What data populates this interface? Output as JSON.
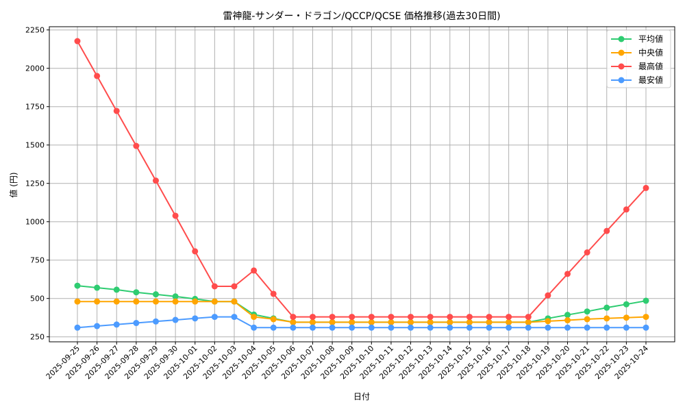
{
  "chart_data": {
    "type": "line",
    "title": "雷神龍-サンダー・ドラゴン/QCCP/QCSE 価格推移(過去30日間)",
    "xlabel": "日付",
    "ylabel": "値 (円)",
    "ylim": [
      225,
      2270
    ],
    "yticks": [
      250,
      500,
      750,
      1000,
      1250,
      1500,
      1750,
      2000,
      2250
    ],
    "grid": true,
    "legend_position": "upper right",
    "x": [
      "2025-09-25",
      "2025-09-26",
      "2025-09-27",
      "2025-09-28",
      "2025-09-29",
      "2025-09-30",
      "2025-10-01",
      "2025-10-02",
      "2025-10-03",
      "2025-10-04",
      "2025-10-05",
      "2025-10-06",
      "2025-10-07",
      "2025-10-08",
      "2025-10-09",
      "2025-10-10",
      "2025-10-11",
      "2025-10-12",
      "2025-10-13",
      "2025-10-14",
      "2025-10-15",
      "2025-10-16",
      "2025-10-17",
      "2025-10-18",
      "2025-10-19",
      "2025-10-20",
      "2025-10-21",
      "2025-10-22",
      "2025-10-23",
      "2025-10-24"
    ],
    "series": [
      {
        "name": "平均値",
        "color": "#2ecc71",
        "values": [
          583,
          570,
          557,
          540,
          527,
          513,
          497,
          480,
          480,
          395,
          370,
          345,
          345,
          345,
          345,
          345,
          345,
          345,
          345,
          345,
          345,
          345,
          345,
          345,
          370,
          393,
          415,
          440,
          462,
          485
        ]
      },
      {
        "name": "中央値",
        "color": "#ffa500",
        "values": [
          480,
          480,
          480,
          480,
          480,
          480,
          480,
          480,
          480,
          380,
          365,
          345,
          345,
          345,
          345,
          345,
          345,
          345,
          345,
          345,
          345,
          345,
          345,
          345,
          352,
          358,
          365,
          370,
          375,
          380
        ]
      },
      {
        "name": "最高値",
        "color": "#ff4c4c",
        "values": [
          2177,
          1950,
          1722,
          1494,
          1268,
          1039,
          807,
          579,
          579,
          682,
          530,
          380,
          380,
          380,
          380,
          380,
          380,
          380,
          380,
          380,
          380,
          380,
          380,
          380,
          520,
          660,
          800,
          940,
          1080,
          1220
        ]
      },
      {
        "name": "最安値",
        "color": "#4c9bff",
        "values": [
          310,
          320,
          330,
          340,
          350,
          360,
          370,
          380,
          380,
          310,
          310,
          310,
          310,
          310,
          310,
          310,
          310,
          310,
          310,
          310,
          310,
          310,
          310,
          310,
          310,
          310,
          310,
          310,
          310,
          310
        ]
      }
    ]
  }
}
